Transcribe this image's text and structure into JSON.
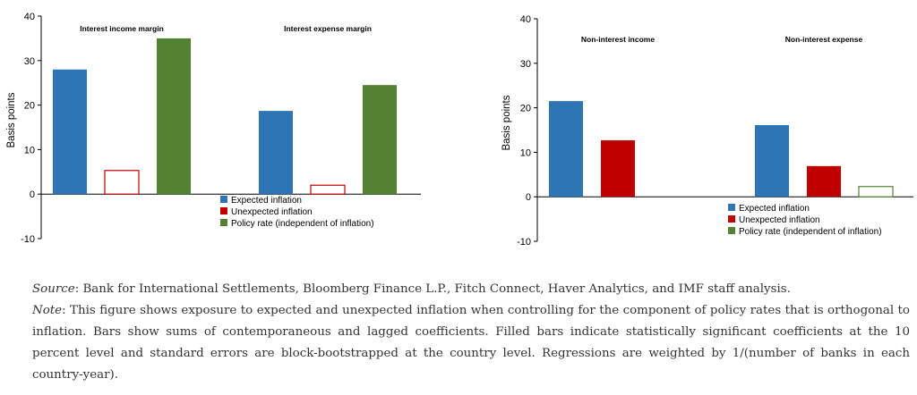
{
  "chart_data": [
    {
      "type": "bar",
      "ylabel": "Basis points",
      "ylim": [
        -10,
        40
      ],
      "yticks": [
        -10,
        0,
        10,
        20,
        30,
        40
      ],
      "grid": false,
      "legend_position": "bottom-right",
      "groups": [
        {
          "label": "Interest income margin",
          "values": [
            28,
            5.3,
            35
          ],
          "significant": [
            true,
            false,
            true
          ]
        },
        {
          "label": "Interest expense margin",
          "values": [
            18.7,
            2,
            24.5
          ],
          "significant": [
            true,
            false,
            true
          ]
        }
      ],
      "series": [
        {
          "name": "Expected inflation",
          "color": "#2e75b6"
        },
        {
          "name": "Unexpected inflation",
          "color": "#c00000"
        },
        {
          "name": "Policy rate (independent of inflation)",
          "color": "#548235"
        }
      ]
    },
    {
      "type": "bar",
      "ylabel": "Basis points",
      "ylim": [
        -10,
        40
      ],
      "yticks": [
        -10,
        0,
        10,
        20,
        30,
        40
      ],
      "grid": false,
      "legend_position": "bottom-right",
      "groups": [
        {
          "label": "Non-interest income",
          "values": [
            21.5,
            12.7,
            null
          ],
          "significant": [
            true,
            true,
            false
          ]
        },
        {
          "label": "Non-interest expense",
          "values": [
            16.1,
            6.9,
            2.3
          ],
          "significant": [
            true,
            true,
            false
          ]
        }
      ],
      "series": [
        {
          "name": "Expected inflation",
          "color": "#2e75b6"
        },
        {
          "name": "Unexpected inflation",
          "color": "#c00000"
        },
        {
          "name": "Policy rate (independent of inflation)",
          "color": "#548235"
        }
      ]
    }
  ],
  "caption": {
    "source_label": "Source",
    "source_text": ": Bank for International Settlements, Bloomberg Finance L.P., Fitch Connect, Haver Analytics, and IMF staff analysis.",
    "note_label": "Note",
    "note_text": ": This figure shows exposure to expected and unexpected inflation when controlling for the component of policy rates that is orthogonal to inflation. Bars show sums of contemporaneous and lagged coefficients. Filled bars indicate statistically significant coefficients at the 10 percent level and standard errors are block-bootstrapped at the country level. Regressions are weighted by 1/(number of banks in each country-year)."
  }
}
